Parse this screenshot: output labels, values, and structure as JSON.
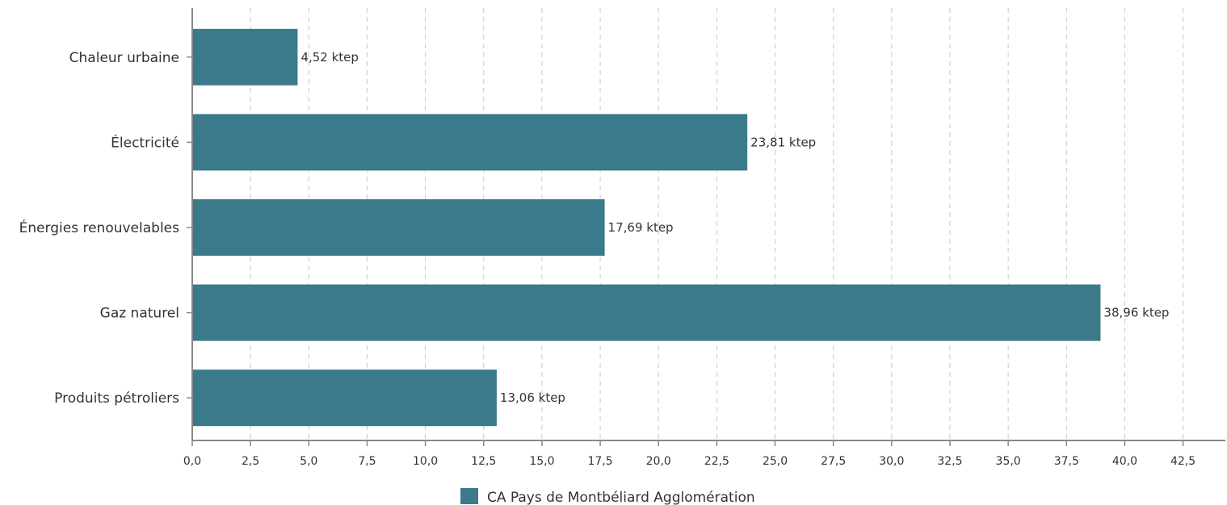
{
  "chart_data": {
    "type": "bar",
    "orientation": "horizontal",
    "categories": [
      "Chaleur urbaine",
      "Électricité",
      "Énergies renouvelables",
      "Gaz naturel",
      "Produits pétroliers"
    ],
    "series": [
      {
        "name": "CA Pays de Montbéliard Agglomération",
        "values": [
          4.52,
          23.81,
          17.69,
          38.96,
          13.06
        ],
        "labels": [
          "4,52 ktep",
          "23,81 ktep",
          "17,69 ktep",
          "38,96 ktep",
          "13,06 ktep"
        ]
      }
    ],
    "xlim": [
      0,
      43.9
    ],
    "xticks": [
      0,
      2.5,
      5,
      7.5,
      10,
      12.5,
      15,
      17.5,
      20,
      22.5,
      25,
      27.5,
      30,
      32.5,
      35,
      37.5,
      40,
      42.5
    ],
    "xtick_labels": [
      "0,0",
      "2,5",
      "5,0",
      "7,5",
      "10,0",
      "12,5",
      "15,0",
      "17,5",
      "20,0",
      "22,5",
      "25,0",
      "27,5",
      "30,0",
      "32,5",
      "35,0",
      "37,5",
      "40,0",
      "42,5"
    ],
    "grid": "vertical-dashed",
    "legend_position": "bottom-center"
  },
  "colors": {
    "bar": "#3b7a8a",
    "grid": "#c8c8c8",
    "axis": "#888888",
    "text": "#333333"
  }
}
